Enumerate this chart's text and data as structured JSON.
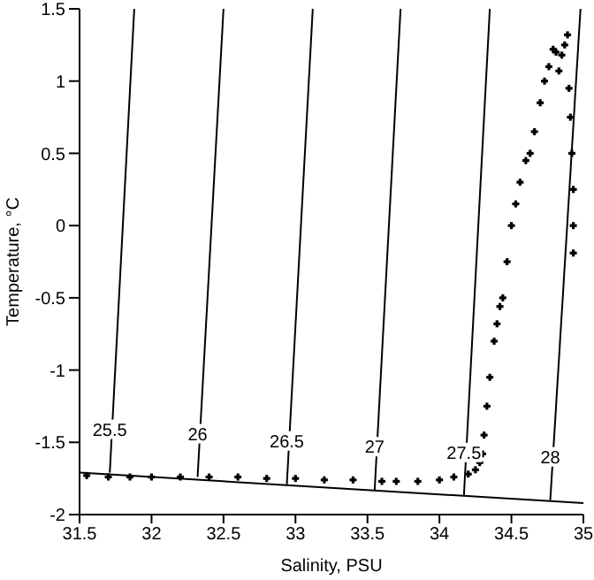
{
  "chart_data": {
    "type": "scatter",
    "xlabel": "Salinity, PSU",
    "ylabel": "Temperature, °C",
    "xlim": [
      31.5,
      35
    ],
    "xticks": [
      31.5,
      32,
      32.5,
      33,
      33.5,
      34,
      34.5,
      35
    ],
    "ylim": [
      -2,
      1.5
    ],
    "yticks": [
      -2,
      -1.5,
      -1,
      -0.5,
      0,
      0.5,
      1,
      1.5
    ],
    "grid": false,
    "legend": false,
    "series": [
      {
        "color": "#000000",
        "marker": "cross",
        "x": [
          31.55,
          31.7,
          31.85,
          32.0,
          32.2,
          32.4,
          32.6,
          32.8,
          33.0,
          33.2,
          33.4,
          33.6,
          33.7,
          33.85,
          34.0,
          34.1,
          34.2,
          34.25,
          34.28,
          34.3,
          34.31,
          34.33,
          34.35,
          34.38,
          34.4,
          34.42,
          34.44,
          34.47,
          34.5,
          34.53,
          34.56,
          34.6,
          34.63,
          34.66,
          34.7,
          34.73,
          34.76,
          34.79,
          34.81,
          34.83,
          34.85,
          34.87,
          34.89,
          34.9,
          34.91,
          34.92,
          34.93,
          34.93,
          34.93
        ],
        "values": [
          -1.73,
          -1.74,
          -1.74,
          -1.74,
          -1.74,
          -1.74,
          -1.74,
          -1.75,
          -1.75,
          -1.76,
          -1.76,
          -1.77,
          -1.77,
          -1.77,
          -1.76,
          -1.74,
          -1.72,
          -1.69,
          -1.64,
          -1.58,
          -1.45,
          -1.25,
          -1.05,
          -0.8,
          -0.68,
          -0.56,
          -0.5,
          -0.25,
          0.0,
          0.15,
          0.3,
          0.45,
          0.5,
          0.65,
          0.85,
          1.0,
          1.1,
          1.22,
          1.2,
          1.07,
          1.18,
          1.25,
          1.32,
          0.95,
          0.75,
          0.5,
          0.25,
          0.0,
          -0.19
        ]
      },
      {
        "type": "line",
        "name": "25.5",
        "color": "#000000",
        "x": [
          31.71,
          31.88
        ],
        "values": [
          -1.71,
          1.5
        ]
      },
      {
        "type": "line",
        "name": "26",
        "color": "#000000",
        "x": [
          32.32,
          32.5
        ],
        "values": [
          -1.74,
          1.5
        ]
      },
      {
        "type": "line",
        "name": "26.5",
        "color": "#000000",
        "x": [
          32.94,
          33.12
        ],
        "values": [
          -1.79,
          1.5
        ]
      },
      {
        "type": "line",
        "name": "27",
        "color": "#000000",
        "x": [
          33.55,
          33.73
        ],
        "values": [
          -1.83,
          1.5
        ]
      },
      {
        "type": "line",
        "name": "27.5",
        "color": "#000000",
        "x": [
          34.17,
          34.35
        ],
        "values": [
          -1.87,
          1.5
        ]
      },
      {
        "type": "line",
        "name": "28",
        "color": "#000000",
        "x": [
          34.77,
          34.98
        ],
        "values": [
          -1.9,
          1.5
        ]
      },
      {
        "type": "line",
        "color": "#000000",
        "x": [
          31.5,
          35
        ],
        "values": [
          -1.71,
          -1.92
        ]
      }
    ]
  }
}
